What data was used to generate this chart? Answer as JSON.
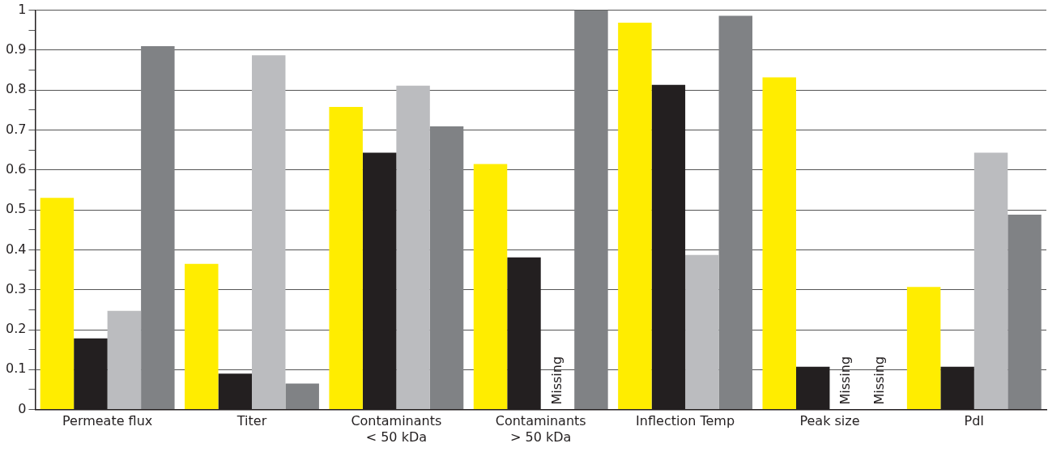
{
  "chart_data": {
    "type": "bar",
    "categories": [
      "Permeate flux",
      "Titer",
      "Contaminants\n< 50 kDa",
      "Contaminants\n> 50 kDa",
      "Inflection Temp",
      "Peak size",
      "PdI"
    ],
    "series": [
      {
        "color": "#ffed00",
        "values": [
          0.53,
          0.365,
          0.758,
          0.615,
          0.969,
          0.832,
          0.307
        ]
      },
      {
        "color": "#231f20",
        "values": [
          0.178,
          0.09,
          0.643,
          0.381,
          0.813,
          0.107,
          0.107
        ]
      },
      {
        "color": "#bbbcbf",
        "values": [
          0.247,
          0.887,
          0.811,
          null,
          0.387,
          null,
          0.643
        ]
      },
      {
        "color": "#808285",
        "values": [
          0.91,
          0.065,
          0.709,
          1.0,
          0.986,
          null,
          0.488
        ]
      }
    ],
    "ylim": [
      0,
      1
    ],
    "yticks": [
      0,
      {
        "value": 0.05,
        "label": null
      },
      "0.1",
      {
        "value": 0.15,
        "label": null
      },
      0.2,
      {
        "value": 0.25,
        "label": null
      },
      0.3,
      {
        "value": 0.35,
        "label": null
      },
      0.4,
      {
        "value": 0.45,
        "label": null
      },
      0.5,
      {
        "value": 0.55,
        "label": null
      },
      0.6,
      {
        "value": 0.65,
        "label": null
      },
      0.7,
      {
        "value": 0.75,
        "label": null
      },
      0.8,
      {
        "value": 0.85,
        "label": null
      },
      0.9,
      {
        "value": 0.95,
        "label": null
      },
      1
    ],
    "grid": "y",
    "annotations": [
      "Missing",
      "Missing",
      "Missing"
    ]
  }
}
